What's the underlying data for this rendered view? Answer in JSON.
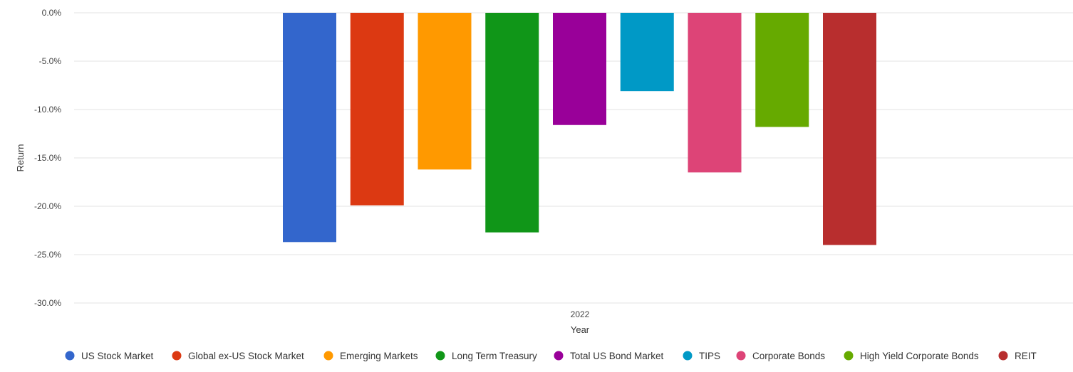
{
  "chart_data": {
    "type": "bar",
    "xlabel": "Year",
    "ylabel": "Return",
    "categories": [
      "2022"
    ],
    "ylim": [
      -30,
      0
    ],
    "yticks": [
      "0.0%",
      "-5.0%",
      "-10.0%",
      "-15.0%",
      "-20.0%",
      "-25.0%",
      "-30.0%"
    ],
    "ytick_values": [
      0,
      -5,
      -10,
      -15,
      -20,
      -25,
      -30
    ],
    "grid": true,
    "legend_position": "bottom",
    "series": [
      {
        "name": "US Stock Market",
        "values": [
          -23.7
        ],
        "color": "#3366cc"
      },
      {
        "name": "Global ex-US Stock Market",
        "values": [
          -19.9
        ],
        "color": "#dc3912"
      },
      {
        "name": "Emerging Markets",
        "values": [
          -16.2
        ],
        "color": "#ff9900"
      },
      {
        "name": "Long Term Treasury",
        "values": [
          -22.7
        ],
        "color": "#109618"
      },
      {
        "name": "Total US Bond Market",
        "values": [
          -11.6
        ],
        "color": "#990099"
      },
      {
        "name": "TIPS",
        "values": [
          -8.1
        ],
        "color": "#0099c6"
      },
      {
        "name": "Corporate Bonds",
        "values": [
          -16.5
        ],
        "color": "#dd4477"
      },
      {
        "name": "High Yield Corporate Bonds",
        "values": [
          -11.8
        ],
        "color": "#66aa00"
      },
      {
        "name": "REIT",
        "values": [
          -24.0
        ],
        "color": "#b82e2e"
      }
    ]
  }
}
